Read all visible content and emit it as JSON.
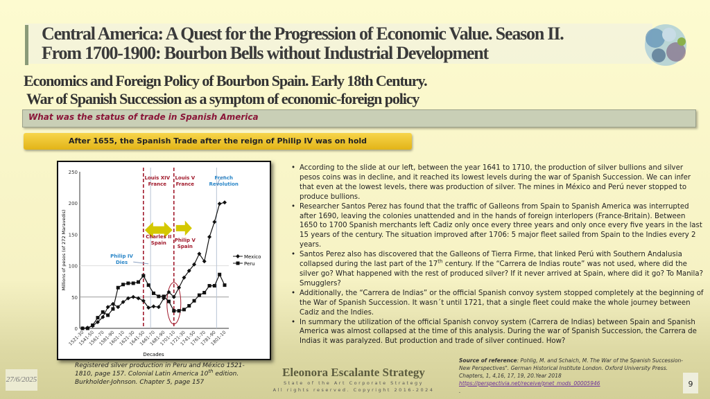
{
  "header": {
    "title_line1": "Central America:  A Quest for the Progression of  Economic Value. Season II.",
    "title_line2": "From 1700-1900: Bourbon Bells without Industrial Development",
    "subtitle_line1": "Economics and Foreign Policy of  Bourbon Spain. Early 18th Century.",
    "subtitle_line2": "War of Spanish Succession as a symptom of  economic-foreign policy"
  },
  "question": "What was the status of trade in Spanish America",
  "banner": "After 1655, the Spanish Trade after the reign of Philip IV was on hold",
  "chart_data": {
    "type": "line",
    "xlabel": "Decades",
    "ylabel": "Millions of pesos (of 272 Maravedis)",
    "ylim": [
      0,
      250
    ],
    "yticks": [
      0,
      50,
      100,
      150,
      200,
      250
    ],
    "categories": [
      "1521-30",
      "1531-40",
      "1541-50",
      "1551-60",
      "1561-70",
      "1571-80",
      "1581-90",
      "1591-00",
      "1601-10",
      "1611-20",
      "1621-30",
      "1631-40",
      "1641-50",
      "1651-60",
      "1661-70",
      "1671-80",
      "1681-90",
      "1691-00",
      "1701-10",
      "1711-20",
      "1721-30",
      "1731-40",
      "1741-50",
      "1751-60",
      "1761-70",
      "1771-80",
      "1781-90",
      "1791-00",
      "1801-10"
    ],
    "tick_labels": [
      "1521-30",
      "1541-50",
      "1561-70",
      "1581-90",
      "1601-10",
      "1621-30",
      "1641-50",
      "1661-70",
      "1681-90",
      "1701-10",
      "1721-30",
      "1741-50",
      "1761-70",
      "1781-90",
      "1801-10"
    ],
    "series": [
      {
        "name": "Mexico",
        "marker": "diamond",
        "values": [
          0,
          1,
          4,
          10,
          18,
          34,
          39,
          34,
          42,
          48,
          50,
          48,
          44,
          33,
          35,
          34,
          48,
          58,
          50,
          65,
          81,
          92,
          102,
          119,
          107,
          146,
          170,
          199,
          201
        ]
      },
      {
        "name": "Peru",
        "marker": "square",
        "values": [
          0,
          0,
          5,
          17,
          26,
          21,
          31,
          65,
          70,
          72,
          72,
          74,
          84,
          69,
          56,
          51,
          51,
          43,
          28,
          28,
          30,
          36,
          44,
          53,
          57,
          68,
          68,
          86,
          69
        ]
      }
    ],
    "legend": "right",
    "annotations": {
      "louis14": [
        "Louis XIV",
        "France"
      ],
      "louis5": [
        "Louis V",
        "France"
      ],
      "french_rev": [
        "French",
        "Revolution"
      ],
      "charles2": [
        "Charles II",
        "Spain"
      ],
      "philip5": [
        "Philip V",
        "Spain"
      ],
      "philip4": [
        "Philip IV",
        "Dies"
      ]
    },
    "colors": {
      "dashed": "#a0182a",
      "annotation_red": "#a0182a",
      "annotation_blue": "#2a86c8",
      "arrow": "#d4c800"
    }
  },
  "bullets": [
    {
      "text": "According to the slide at our left, between the year 1641 to 1710, the production of silver bullions and silver pesos coins was in decline, and it reached its lowest levels during the war of Spanish Succession. We can infer that even at the lowest levels, there was production of silver. The mines in México and Perú never stopped to produce bullions."
    },
    {
      "text": "Researcher Santos Perez has found that the traffic of Galleons from Spain to Spanish America was interrupted after 1690, leaving the colonies unattended and in the hands of foreign interlopers (France-Britain). Between 1650 to 1700 Spanish merchants left Cadiz only once every three years and only once every five years in the last 15 years of the century. The situation improved after 1706: 5 major fleet sailed from Spain to the Indies every 2 years."
    },
    {
      "text_a": "Santos Perez also has discovered that the Galleons of Tierra Firme, that linked Perú with Southern Andalusia collapsed during the last part of the 17",
      "sup": "th",
      "text_b": " century.  If the “Carrera de Indias route” was not used, where did the silver go? What happened with the rest of produced silver? If it never arrived at Spain, where did it go? To Manila? Smugglers?"
    },
    {
      "text": "Additionally, the “Carrera de Indias” or the official Spanish convoy system stopped completely at the beginning of the War of Spanish Succession. It wasn´t until 1721, that a single fleet could make the whole journey between Cadiz and the Indies."
    },
    {
      "text": "In summary the utilization of the official Spanish convoy system  (Carrera de Indias) between Spain and Spanish America was almost collapsed at the time of this analysis. During the war of Spanish Succession, the Carrera de Indias it was paralyzed. But production and trade of silver continued. How?"
    }
  ],
  "caption": {
    "a": "Registered silver production in Peru and México 1521-1810, page 157. Colonial Latin America 10",
    "sup": "th",
    "b": " edition. Burkholder-Johnson. Chapter 5, page 157"
  },
  "footer": {
    "date": "27/6/2025",
    "brand": "Eleonora Escalante Strategy",
    "tagline": "State of the Art Corporate Strategy",
    "copyright": "All rights reserved. Copyright 2016-2024",
    "page": "9"
  },
  "source": {
    "label": "Source of reference",
    "text": ": Pohlig, M. and Schaich, M. The War of the Spanish Succession-New Perspectives\". German Historical Institute London. Oxford University Press. Chapters, 1, 4,16, 17, 19, 20.Year 2018",
    "link": "https://perspectivia.net/receive/pnet_mods_00005946",
    "dot": "."
  }
}
